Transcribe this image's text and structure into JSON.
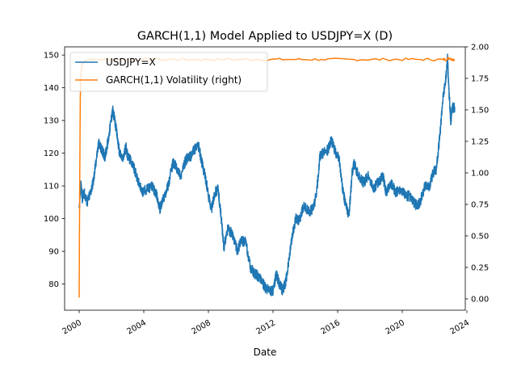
{
  "chart_data": {
    "type": "line",
    "title": "GARCH(1,1) Model Applied to USDJPY=X (D)",
    "xlabel": "Date",
    "ylabel": "",
    "ylabel_right": "",
    "x_range": [
      1999.1,
      2023.9
    ],
    "ylim": [
      72.0,
      152.5
    ],
    "ylim_right": [
      -0.09,
      2.0
    ],
    "x_ticks": [
      {
        "value": 2000,
        "label": "2000"
      },
      {
        "value": 2004,
        "label": "2004"
      },
      {
        "value": 2008,
        "label": "2008"
      },
      {
        "value": 2012,
        "label": "2012"
      },
      {
        "value": 2016,
        "label": "2016"
      },
      {
        "value": 2020,
        "label": "2020"
      },
      {
        "value": 2024,
        "label": "2024"
      }
    ],
    "y_ticks": [
      {
        "value": 80,
        "label": "80"
      },
      {
        "value": 90,
        "label": "90"
      },
      {
        "value": 100,
        "label": "100"
      },
      {
        "value": 110,
        "label": "110"
      },
      {
        "value": 120,
        "label": "120"
      },
      {
        "value": 130,
        "label": "130"
      },
      {
        "value": 140,
        "label": "140"
      },
      {
        "value": 150,
        "label": "150"
      }
    ],
    "y_ticks_right": [
      {
        "value": 0.0,
        "label": "0.00"
      },
      {
        "value": 0.25,
        "label": "0.25"
      },
      {
        "value": 0.5,
        "label": "0.50"
      },
      {
        "value": 0.75,
        "label": "0.75"
      },
      {
        "value": 1.0,
        "label": "1.00"
      },
      {
        "value": 1.25,
        "label": "1.25"
      },
      {
        "value": 1.5,
        "label": "1.50"
      },
      {
        "value": 1.75,
        "label": "1.75"
      },
      {
        "value": 2.0,
        "label": "2.00"
      }
    ],
    "legend_position": "top-left",
    "grid": false,
    "series": [
      {
        "name": "USDJPY=X",
        "axis": "left",
        "color": "#1f77b4",
        "x": [
          2000.0,
          2000.1,
          2000.2,
          2000.3,
          2000.5,
          2000.7,
          2000.9,
          2001.0,
          2001.2,
          2001.4,
          2001.6,
          2001.8,
          2002.0,
          2002.1,
          2002.3,
          2002.5,
          2002.7,
          2002.9,
          2003.0,
          2003.3,
          2003.6,
          2003.9,
          2004.2,
          2004.5,
          2004.8,
          2005.0,
          2005.2,
          2005.5,
          2005.8,
          2006.0,
          2006.3,
          2006.6,
          2006.9,
          2007.1,
          2007.4,
          2007.6,
          2007.8,
          2008.0,
          2008.2,
          2008.4,
          2008.6,
          2008.8,
          2008.95,
          2009.2,
          2009.5,
          2009.8,
          2010.0,
          2010.3,
          2010.6,
          2010.9,
          2011.2,
          2011.5,
          2011.8,
          2012.0,
          2012.2,
          2012.4,
          2012.6,
          2012.8,
          2013.0,
          2013.2,
          2013.4,
          2013.6,
          2013.9,
          2014.2,
          2014.5,
          2014.7,
          2014.9,
          2015.1,
          2015.4,
          2015.6,
          2015.9,
          2016.1,
          2016.3,
          2016.5,
          2016.7,
          2016.9,
          2017.0,
          2017.3,
          2017.6,
          2017.9,
          2018.2,
          2018.5,
          2018.8,
          2019.0,
          2019.3,
          2019.6,
          2019.9,
          2020.2,
          2020.4,
          2020.7,
          2020.9,
          2021.1,
          2021.4,
          2021.7,
          2021.9,
          2022.1,
          2022.3,
          2022.5,
          2022.7,
          2022.8,
          2022.9,
          2023.0,
          2023.1,
          2023.25
        ],
        "values": [
          102,
          111,
          106,
          108,
          105,
          108,
          112,
          116,
          123,
          121,
          119,
          124,
          131,
          133,
          127,
          120,
          118,
          122,
          119,
          117,
          112,
          108,
          109,
          110,
          107,
          103,
          106,
          110,
          117,
          116,
          113,
          118,
          119,
          121,
          122,
          117,
          113,
          107,
          103,
          108,
          109,
          100,
          91,
          97,
          95,
          90,
          93,
          93,
          85,
          83,
          82,
          79,
          78,
          78,
          83,
          80,
          78,
          81,
          88,
          95,
          100,
          99,
          104,
          102,
          103,
          108,
          119,
          120,
          121,
          124,
          120,
          118,
          109,
          104,
          101,
          114,
          117,
          113,
          111,
          113,
          109,
          111,
          113,
          108,
          111,
          108,
          109,
          107,
          107,
          105,
          104,
          105,
          110,
          110,
          114,
          115,
          124,
          136,
          143,
          149,
          138,
          130,
          134,
          134
        ]
      },
      {
        "name": "GARCH(1,1) Volatility (right)",
        "axis": "right",
        "color": "#ff7f0e",
        "x": [
          2000.0,
          2000.03,
          2000.07,
          2000.12,
          2000.2,
          2000.35,
          2000.6,
          2001.0,
          2003.0,
          2005.0,
          2007.0,
          2009.0,
          2011.0,
          2013.0,
          2015.0,
          2017.0,
          2019.0,
          2021.0,
          2022.5,
          2022.8,
          2023.0,
          2023.25
        ],
        "values": [
          0.01,
          0.85,
          1.6,
          1.8,
          1.87,
          1.89,
          1.9,
          1.9,
          1.9,
          1.9,
          1.9,
          1.9,
          1.9,
          1.9,
          1.9,
          1.9,
          1.9,
          1.9,
          1.9,
          1.91,
          1.9,
          1.9
        ]
      }
    ]
  }
}
